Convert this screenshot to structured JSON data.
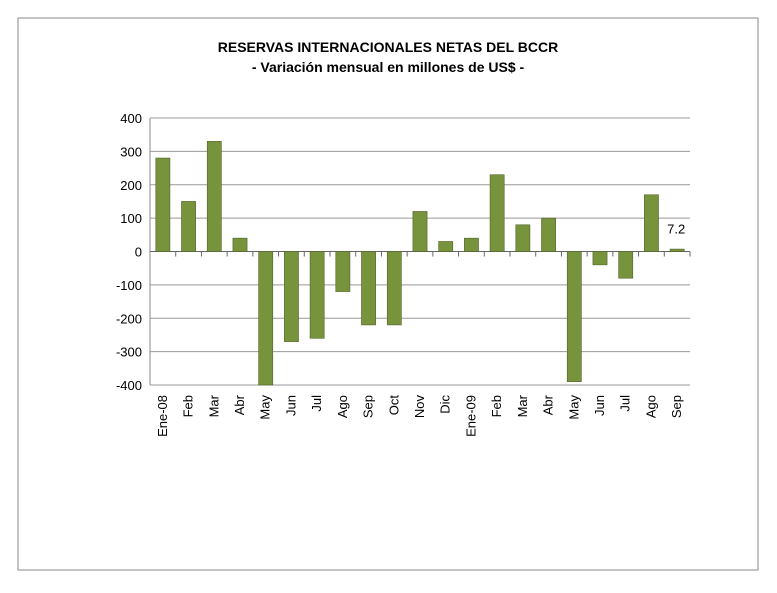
{
  "chart_data": {
    "type": "bar",
    "title": "RESERVAS INTERNACIONALES NETAS DEL BCCR",
    "subtitle": "- Variación mensual en millones de US$ -",
    "categories": [
      "Ene-08",
      "Feb",
      "Mar",
      "Abr",
      "May",
      "Jun",
      "Jul",
      "Ago",
      "Sep",
      "Oct",
      "Nov",
      "Dic",
      "Ene-09",
      "Feb",
      "Mar",
      "Abr",
      "May",
      "Jun",
      "Jul",
      "Ago",
      "Sep"
    ],
    "values": [
      280,
      150,
      330,
      40,
      -400,
      -270,
      -260,
      -120,
      -220,
      -220,
      120,
      30,
      40,
      230,
      80,
      100,
      -390,
      -40,
      -80,
      170,
      7.2
    ],
    "value_labels": [
      null,
      null,
      null,
      null,
      null,
      null,
      null,
      null,
      null,
      null,
      null,
      null,
      null,
      null,
      null,
      null,
      null,
      null,
      null,
      null,
      "7.2"
    ],
    "color": "#77933c",
    "ylim": [
      -400,
      400
    ],
    "yticks": [
      -400,
      -300,
      -200,
      -100,
      0,
      100,
      200,
      300,
      400
    ],
    "grid": true
  }
}
